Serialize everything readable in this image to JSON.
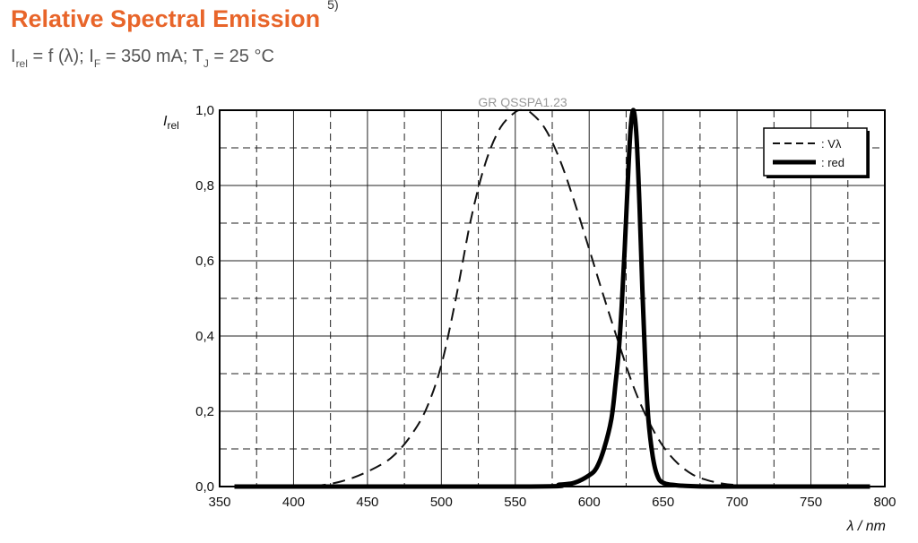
{
  "page": {
    "title": "Relative Spectral Emission",
    "title_footnote": "5)",
    "subtitle_parts": [
      "I",
      "rel",
      " = f (λ); I",
      "F",
      " = 350 mA; T",
      "J",
      " = 25 °C"
    ],
    "accent_color": "#e8652a"
  },
  "chart_data": {
    "type": "line",
    "watermark": "GR QSSPA1.23",
    "ylabel_main": "I",
    "ylabel_sub": "rel",
    "xlabel": "λ / nm",
    "xlim": [
      350,
      800
    ],
    "ylim": [
      0.0,
      1.0
    ],
    "xticks": [
      350,
      400,
      450,
      500,
      550,
      600,
      650,
      700,
      750,
      800
    ],
    "xtick_labels": [
      "350",
      "400",
      "450",
      "500",
      "550",
      "600",
      "650",
      "700",
      "750",
      "800"
    ],
    "yticks": [
      0.0,
      0.2,
      0.4,
      0.6,
      0.8,
      1.0
    ],
    "ytick_labels": [
      "0,0",
      "0,2",
      "0,4",
      "0,6",
      "0,8",
      "1,0"
    ],
    "grid": true,
    "legend_position": "top-right",
    "series": [
      {
        "name": ": Vλ",
        "style": "dashed",
        "color": "#111111",
        "x": [
          360,
          400,
          420,
          440,
          460,
          470,
          480,
          490,
          500,
          510,
          520,
          530,
          540,
          550,
          555,
          560,
          570,
          580,
          590,
          600,
          610,
          620,
          630,
          640,
          650,
          660,
          670,
          680,
          690,
          700,
          720,
          750,
          790
        ],
        "y": [
          0.0,
          0.0,
          0.004,
          0.023,
          0.06,
          0.091,
          0.139,
          0.208,
          0.323,
          0.503,
          0.71,
          0.862,
          0.954,
          0.995,
          1.0,
          0.995,
          0.952,
          0.87,
          0.757,
          0.631,
          0.503,
          0.381,
          0.265,
          0.175,
          0.107,
          0.061,
          0.032,
          0.017,
          0.008,
          0.004,
          0.001,
          0.0,
          0.0
        ]
      },
      {
        "name": ": red",
        "style": "solid",
        "color": "#000000",
        "x": [
          360,
          560,
          580,
          590,
          600,
          605,
          610,
          615,
          618,
          620,
          622,
          624,
          626,
          628,
          630,
          632,
          634,
          636,
          638,
          640,
          643,
          646,
          650,
          660,
          680,
          700,
          790
        ],
        "y": [
          0.0,
          0.0,
          0.005,
          0.01,
          0.03,
          0.05,
          0.1,
          0.18,
          0.28,
          0.36,
          0.48,
          0.63,
          0.8,
          0.95,
          1.0,
          0.93,
          0.75,
          0.52,
          0.32,
          0.18,
          0.08,
          0.03,
          0.01,
          0.003,
          0.0,
          0.0,
          0.0
        ]
      }
    ]
  }
}
